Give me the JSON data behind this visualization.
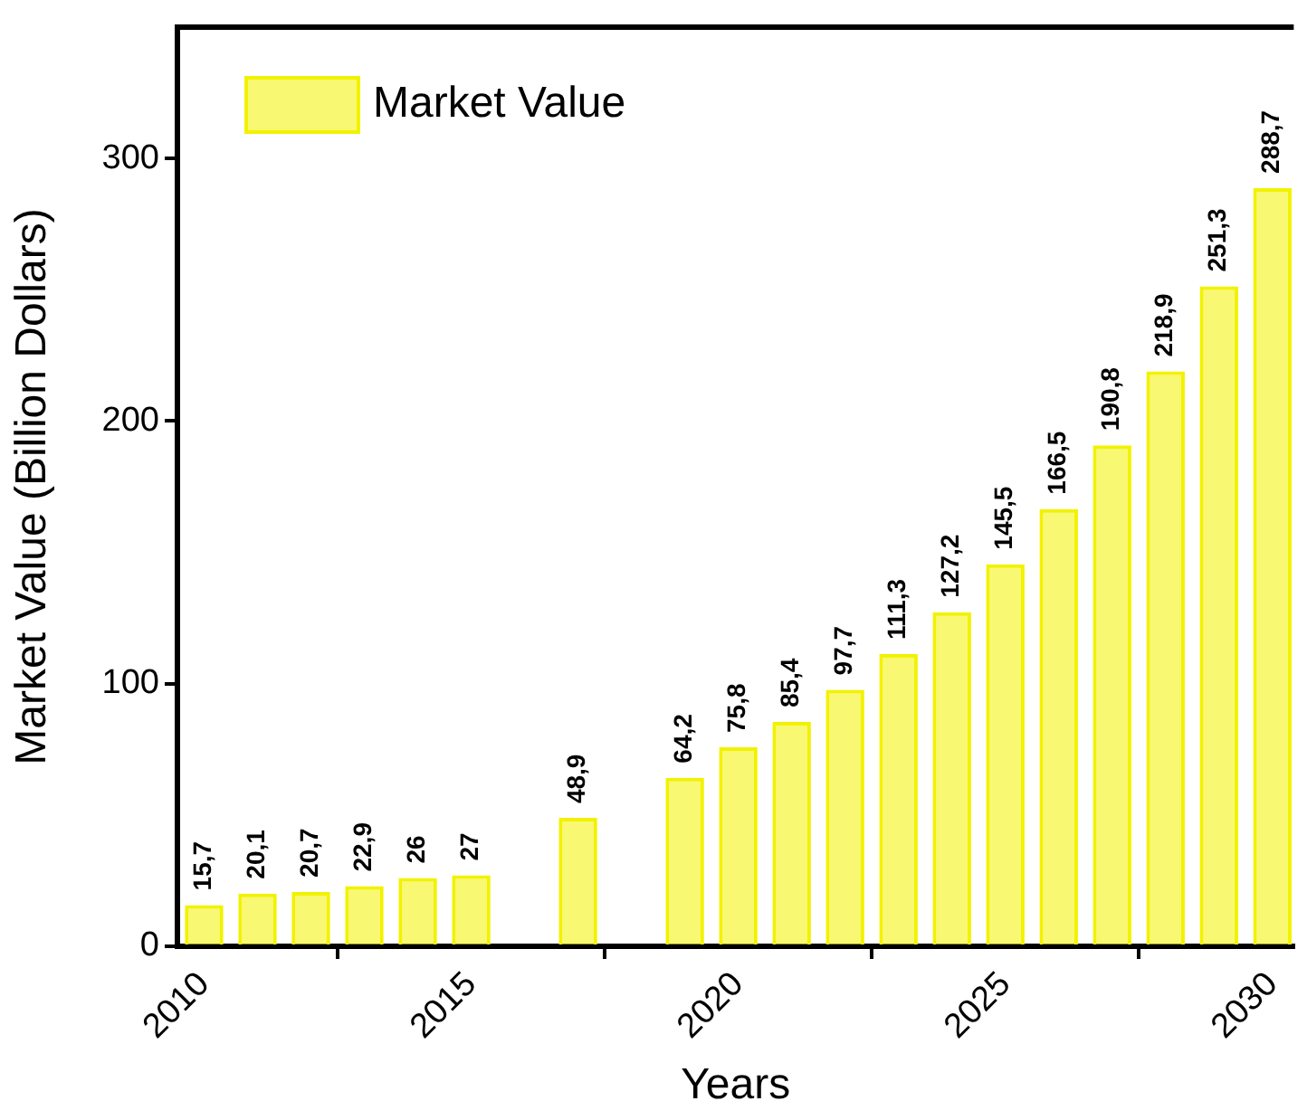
{
  "chart_data": {
    "type": "bar",
    "xlabel": "Years",
    "ylabel": "Market Value (Billion Dollars)",
    "x": [
      2010,
      2011,
      2012,
      2013,
      2014,
      2015,
      2017,
      2019,
      2020,
      2021,
      2022,
      2023,
      2024,
      2025,
      2026,
      2027,
      2028,
      2029,
      2030
    ],
    "series": [
      {
        "name": "Market Value",
        "color": "#f2f200",
        "values": [
          15.7,
          20.1,
          20.7,
          22.9,
          26,
          27,
          48.9,
          64.2,
          75.8,
          85.4,
          97.7,
          111.3,
          127.2,
          145.5,
          166.5,
          190.8,
          218.9,
          251.3,
          288.7
        ],
        "value_labels": [
          "15,7",
          "20,1",
          "20,7",
          "22,9",
          "26",
          "27",
          "48,9",
          "64,2",
          "75,8",
          "85,4",
          "97,7",
          "111,3",
          "127,2",
          "145,5",
          "166,5",
          "190,8",
          "218,9",
          "251,3",
          "288,7"
        ]
      }
    ],
    "xlim": [
      2009.5,
      2030.4
    ],
    "xticks": [
      2010,
      2015,
      2020,
      2025,
      2030
    ],
    "ylim": [
      0,
      350
    ],
    "yticks": [
      0,
      100,
      200,
      300
    ],
    "legend": "top left",
    "grid": false
  }
}
